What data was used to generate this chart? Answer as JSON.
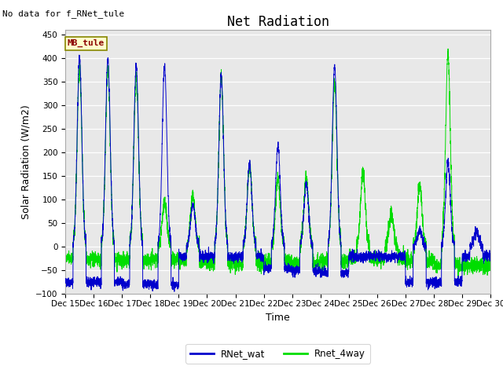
{
  "title": "Net Radiation",
  "xlabel": "Time",
  "ylabel": "Solar Radiation (W/m2)",
  "note": "No data for f_RNet_tule",
  "label_box": "MB_tule",
  "ylim": [
    -100,
    460
  ],
  "xlim": [
    0,
    15
  ],
  "xtick_labels": [
    "Dec 15",
    "Dec 16",
    "Dec 17",
    "Dec 18",
    "Dec 19",
    "Dec 20",
    "Dec 21",
    "Dec 22",
    "Dec 23",
    "Dec 24",
    "Dec 25",
    "Dec 26",
    "Dec 27",
    "Dec 28",
    "Dec 29",
    "Dec 30"
  ],
  "ytick_values": [
    -100,
    -50,
    0,
    50,
    100,
    150,
    200,
    250,
    300,
    350,
    400,
    450
  ],
  "line1_color": "#0000cc",
  "line2_color": "#00dd00",
  "legend_entries": [
    "RNet_wat",
    "Rnet_4way"
  ],
  "bg_color": "#e8e8e8",
  "title_fontsize": 12,
  "axis_fontsize": 9,
  "tick_fontsize": 7.5,
  "note_fontsize": 8,
  "label_fontsize": 8
}
